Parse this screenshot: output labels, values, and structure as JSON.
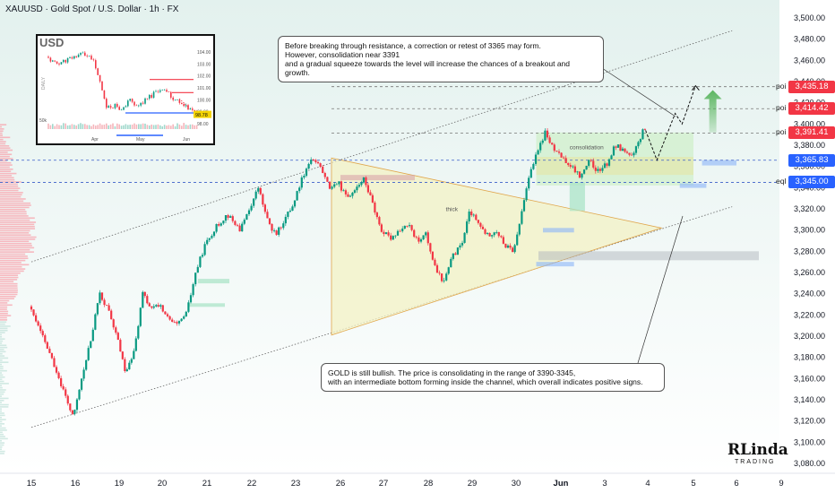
{
  "header": {
    "title": "XAUUSD · Gold Spot / U.S. Dollar · 1h · FX"
  },
  "chart_data": {
    "type": "candlestick",
    "symbol": "XAUUSD",
    "timeframe": "1h",
    "y_axis": {
      "range": [
        3070,
        3510
      ],
      "ticks": [
        "3,500.00",
        "3,480.00",
        "3,460.00",
        "3,440.00",
        "3,420.00",
        "3,400.00",
        "3,380.00",
        "3,360.00",
        "3,340.00",
        "3,320.00",
        "3,300.00",
        "3,280.00",
        "3,260.00",
        "3,240.00",
        "3,220.00",
        "3,200.00",
        "3,180.00",
        "3,160.00",
        "3,140.00",
        "3,120.00",
        "3,100.00",
        "3,080.00"
      ],
      "tick_values": [
        3500,
        3480,
        3460,
        3440,
        3420,
        3400,
        3380,
        3360,
        3340,
        3320,
        3300,
        3280,
        3260,
        3240,
        3220,
        3200,
        3180,
        3160,
        3140,
        3120,
        3100,
        3080
      ]
    },
    "x_axis": {
      "ticks": [
        "15",
        "16",
        "19",
        "20",
        "21",
        "22",
        "23",
        "26",
        "27",
        "28",
        "29",
        "30",
        "Jun",
        "3",
        "4",
        "5",
        "6",
        "9"
      ],
      "tick_index": [
        0,
        1,
        2,
        3,
        4,
        5,
        6,
        7,
        8,
        9,
        10,
        11,
        12,
        13,
        14,
        15,
        16,
        17
      ]
    },
    "price_path": [
      [
        0.0,
        3228
      ],
      [
        0.3,
        3200
      ],
      [
        0.6,
        3170
      ],
      [
        0.9,
        3135
      ],
      [
        1.0,
        3123
      ],
      [
        1.2,
        3160
      ],
      [
        1.4,
        3195
      ],
      [
        1.6,
        3240
      ],
      [
        1.8,
        3225
      ],
      [
        2.0,
        3200
      ],
      [
        2.2,
        3165
      ],
      [
        2.4,
        3185
      ],
      [
        2.6,
        3240
      ],
      [
        2.8,
        3225
      ],
      [
        3.0,
        3230
      ],
      [
        3.2,
        3215
      ],
      [
        3.4,
        3210
      ],
      [
        3.6,
        3222
      ],
      [
        3.8,
        3260
      ],
      [
        4.0,
        3285
      ],
      [
        4.2,
        3300
      ],
      [
        4.5,
        3315
      ],
      [
        4.8,
        3300
      ],
      [
        5.0,
        3320
      ],
      [
        5.2,
        3340
      ],
      [
        5.4,
        3310
      ],
      [
        5.6,
        3295
      ],
      [
        5.8,
        3310
      ],
      [
        6.0,
        3325
      ],
      [
        6.2,
        3350
      ],
      [
        6.4,
        3368
      ],
      [
        6.6,
        3360
      ],
      [
        6.8,
        3340
      ],
      [
        7.0,
        3345
      ],
      [
        7.2,
        3330
      ],
      [
        7.4,
        3340
      ],
      [
        7.6,
        3348
      ],
      [
        7.8,
        3325
      ],
      [
        8.0,
        3300
      ],
      [
        8.2,
        3292
      ],
      [
        8.4,
        3300
      ],
      [
        8.6,
        3305
      ],
      [
        8.8,
        3290
      ],
      [
        9.0,
        3296
      ],
      [
        9.2,
        3265
      ],
      [
        9.4,
        3250
      ],
      [
        9.6,
        3275
      ],
      [
        9.8,
        3285
      ],
      [
        10.0,
        3318
      ],
      [
        10.2,
        3305
      ],
      [
        10.4,
        3295
      ],
      [
        10.6,
        3300
      ],
      [
        10.8,
        3285
      ],
      [
        11.0,
        3280
      ],
      [
        11.1,
        3300
      ],
      [
        11.3,
        3345
      ],
      [
        11.5,
        3370
      ],
      [
        11.7,
        3392
      ],
      [
        11.9,
        3375
      ],
      [
        12.1,
        3368
      ],
      [
        12.3,
        3360
      ],
      [
        12.5,
        3350
      ],
      [
        12.7,
        3365
      ],
      [
        12.9,
        3355
      ],
      [
        13.1,
        3362
      ],
      [
        13.3,
        3380
      ],
      [
        13.5,
        3375
      ],
      [
        13.7,
        3368
      ],
      [
        13.85,
        3385
      ],
      [
        13.95,
        3394
      ]
    ],
    "channel": {
      "lower": [
        [
          0.0,
          3114
        ],
        [
          15.9,
          3322
        ]
      ],
      "upper": [
        [
          0.0,
          3270
        ],
        [
          15.9,
          3488
        ]
      ]
    },
    "triangle": {
      "vertices": [
        [
          6.8,
          3368
        ],
        [
          6.8,
          3201
        ],
        [
          14.3,
          3302
        ]
      ]
    },
    "projection": [
      [
        13.95,
        3394
      ],
      [
        14.2,
        3366
      ],
      [
        14.6,
        3410
      ],
      [
        14.75,
        3400
      ],
      [
        15.05,
        3436
      ]
    ],
    "levels": [
      {
        "label": "poi",
        "price": 3435.18,
        "text": "3,435.18",
        "color": "#f23645"
      },
      {
        "label": "poi",
        "price": 3414.42,
        "text": "3,414.42",
        "color": "#f23645"
      },
      {
        "label": "poi",
        "price": 3391.41,
        "text": "3,391.41",
        "color": "#f23645"
      },
      {
        "label": "",
        "price": 3365.83,
        "text": "3,365.83",
        "color": "#2962ff"
      },
      {
        "label": "eql",
        "price": 3345.0,
        "text": "3,345.00",
        "color": "#2962ff"
      }
    ],
    "annotations": [
      {
        "text": "consolidation",
        "x": 12.2,
        "y": 3376
      },
      {
        "text": "thick",
        "x": 9.4,
        "y": 3318
      }
    ]
  },
  "notes": {
    "top": "Before breaking through resistance, a correction or retest of 3365 may form.\nHowever, consolidation near 3391\nand a gradual squeeze towards the level will increase the chances of a breakout and growth.",
    "bottom": "GOLD is still bullish. The price is consolidating in the range of 3390-3345,\nwith an intermediate bottom forming inside the channel, which overall indicates positive signs."
  },
  "inset": {
    "title": "USD",
    "side_label": "DAILY",
    "y_ticks": [
      "104.00",
      "103.00",
      "102.00",
      "101.00",
      "100.00",
      "99.00",
      "98.00"
    ],
    "current": "98.78",
    "x_ticks": [
      "Apr",
      "May",
      "Jun"
    ],
    "volume_label": "50k"
  },
  "logo": {
    "main": "RLinda",
    "sub": "TRADING"
  },
  "colors": {
    "up": "#089981",
    "down": "#f23645",
    "bg_top": "#e3f1ee",
    "bg_bottom": "#ffffff",
    "zone": "#c9eec2",
    "triangle": "#f3f2c4"
  }
}
